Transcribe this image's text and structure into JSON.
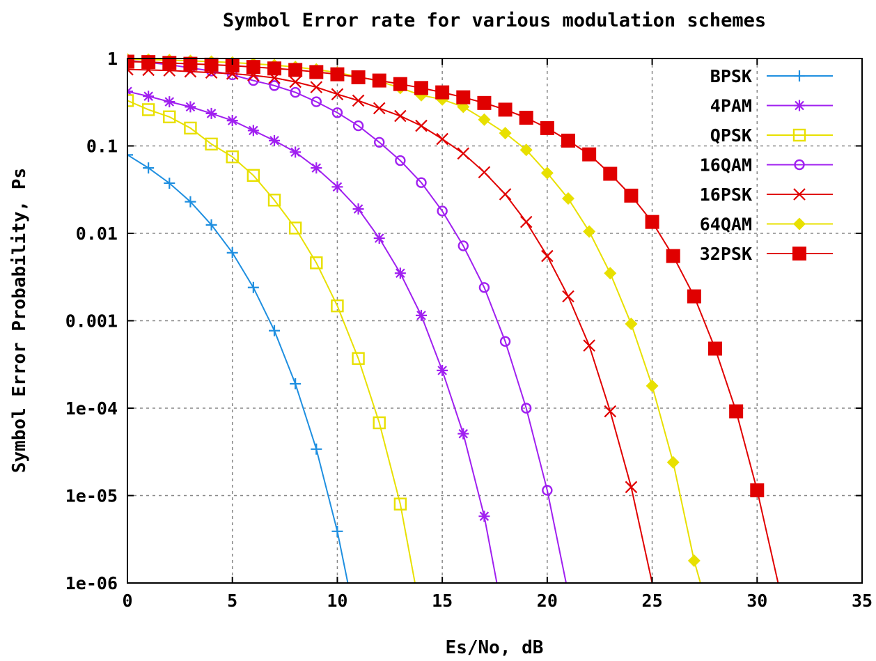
{
  "chart_data": {
    "type": "line",
    "title": "Symbol Error rate for various modulation schemes",
    "xlabel": "Es/No, dB",
    "ylabel": "Symbol Error Probability, Ps",
    "xlim": [
      0,
      35
    ],
    "ylim": [
      1e-06,
      1
    ],
    "yscale": "log",
    "grid": true,
    "legend_position": "top-right",
    "x_ticks": [
      0,
      5,
      10,
      15,
      20,
      25,
      30,
      35
    ],
    "x_tick_labels": [
      "0",
      "5",
      "10",
      "15",
      "20",
      "25",
      "30",
      "35"
    ],
    "y_ticks": [
      1e-06,
      1e-05,
      0.0001,
      0.001,
      0.01,
      0.1,
      1
    ],
    "y_tick_labels": [
      "1e-06",
      "1e-05",
      "1e-04",
      "0.001",
      "0.01",
      "0.1",
      "1"
    ],
    "series": [
      {
        "name": "BPSK",
        "color": "#1f8fe0",
        "marker": "plus",
        "x": [
          0,
          1,
          2,
          3,
          4,
          5,
          6,
          7,
          8,
          9,
          10,
          10.5
        ],
        "y": [
          0.079,
          0.056,
          0.0375,
          0.023,
          0.0125,
          0.006,
          0.0024,
          0.00077,
          0.00019,
          3.4e-05,
          3.9e-06,
          1e-06
        ],
        "markers_upto": 11
      },
      {
        "name": "4PAM",
        "color": "#a020f0",
        "marker": "star",
        "x": [
          0,
          1,
          2,
          3,
          4,
          5,
          6,
          7,
          8,
          9,
          10,
          11,
          12,
          13,
          14,
          15,
          16,
          17,
          17.6
        ],
        "y": [
          0.42,
          0.37,
          0.32,
          0.28,
          0.235,
          0.195,
          0.15,
          0.115,
          0.085,
          0.056,
          0.034,
          0.019,
          0.0088,
          0.0035,
          0.00115,
          0.00027,
          5.1e-05,
          5.8e-06,
          1e-06
        ],
        "markers_upto": 18
      },
      {
        "name": "QPSK",
        "color": "#e8e000",
        "marker": "square-open",
        "x": [
          0,
          1,
          2,
          3,
          4,
          5,
          6,
          7,
          8,
          9,
          10,
          11,
          12,
          13,
          13.7
        ],
        "y": [
          0.33,
          0.26,
          0.215,
          0.16,
          0.105,
          0.075,
          0.046,
          0.024,
          0.0115,
          0.0046,
          0.00148,
          0.00037,
          6.8e-05,
          8e-06,
          1e-06
        ],
        "markers_upto": 14
      },
      {
        "name": "16QAM",
        "color": "#a020f0",
        "marker": "circle-open",
        "x": [
          0,
          1,
          2,
          3,
          4,
          5,
          6,
          7,
          8,
          9,
          10,
          11,
          12,
          13,
          14,
          15,
          16,
          17,
          18,
          19,
          20,
          20.9
        ],
        "y": [
          0.95,
          0.9,
          0.85,
          0.78,
          0.72,
          0.65,
          0.56,
          0.49,
          0.41,
          0.32,
          0.24,
          0.17,
          0.11,
          0.068,
          0.038,
          0.018,
          0.0072,
          0.0024,
          0.00058,
          0.0001,
          1.15e-05,
          1e-06
        ],
        "markers_upto": 21
      },
      {
        "name": "16PSK",
        "color": "#e00000",
        "marker": "cross",
        "x": [
          0,
          1,
          2,
          3,
          4,
          5,
          6,
          7,
          8,
          9,
          10,
          11,
          12,
          13,
          14,
          15,
          16,
          17,
          18,
          19,
          20,
          21,
          22,
          23,
          24,
          25
        ],
        "y": [
          0.75,
          0.74,
          0.73,
          0.71,
          0.69,
          0.67,
          0.64,
          0.6,
          0.54,
          0.47,
          0.39,
          0.33,
          0.27,
          0.22,
          0.17,
          0.12,
          0.082,
          0.05,
          0.028,
          0.0135,
          0.0055,
          0.0019,
          0.00052,
          9.2e-05,
          1.25e-05,
          1e-06
        ],
        "markers_upto": 25
      },
      {
        "name": "64QAM",
        "color": "#e8e000",
        "marker": "diamond",
        "x": [
          0,
          1,
          2,
          3,
          4,
          5,
          6,
          7,
          8,
          9,
          10,
          11,
          12,
          13,
          14,
          15,
          16,
          17,
          18,
          19,
          20,
          21,
          22,
          23,
          24,
          25,
          26,
          27,
          27.3
        ],
        "y": [
          0.98,
          0.97,
          0.96,
          0.94,
          0.92,
          0.9,
          0.87,
          0.84,
          0.8,
          0.75,
          0.69,
          0.62,
          0.55,
          0.46,
          0.38,
          0.34,
          0.28,
          0.2,
          0.14,
          0.09,
          0.049,
          0.025,
          0.0105,
          0.0035,
          0.00092,
          0.00018,
          2.4e-05,
          1.8e-06,
          1e-06
        ],
        "markers_upto": 28
      },
      {
        "name": "32PSK",
        "color": "#e00000",
        "marker": "square-filled",
        "x": [
          0,
          1,
          2,
          3,
          4,
          5,
          6,
          7,
          8,
          9,
          10,
          11,
          12,
          13,
          14,
          15,
          16,
          17,
          18,
          19,
          20,
          21,
          22,
          23,
          24,
          25,
          26,
          27,
          28,
          29,
          30,
          31
        ],
        "y": [
          0.92,
          0.91,
          0.89,
          0.87,
          0.85,
          0.83,
          0.8,
          0.77,
          0.74,
          0.7,
          0.66,
          0.61,
          0.56,
          0.51,
          0.46,
          0.41,
          0.36,
          0.31,
          0.26,
          0.21,
          0.16,
          0.115,
          0.08,
          0.048,
          0.027,
          0.0135,
          0.0055,
          0.0019,
          0.00048,
          9.2e-05,
          1.15e-05,
          1e-06
        ],
        "markers_upto": 31
      }
    ]
  }
}
